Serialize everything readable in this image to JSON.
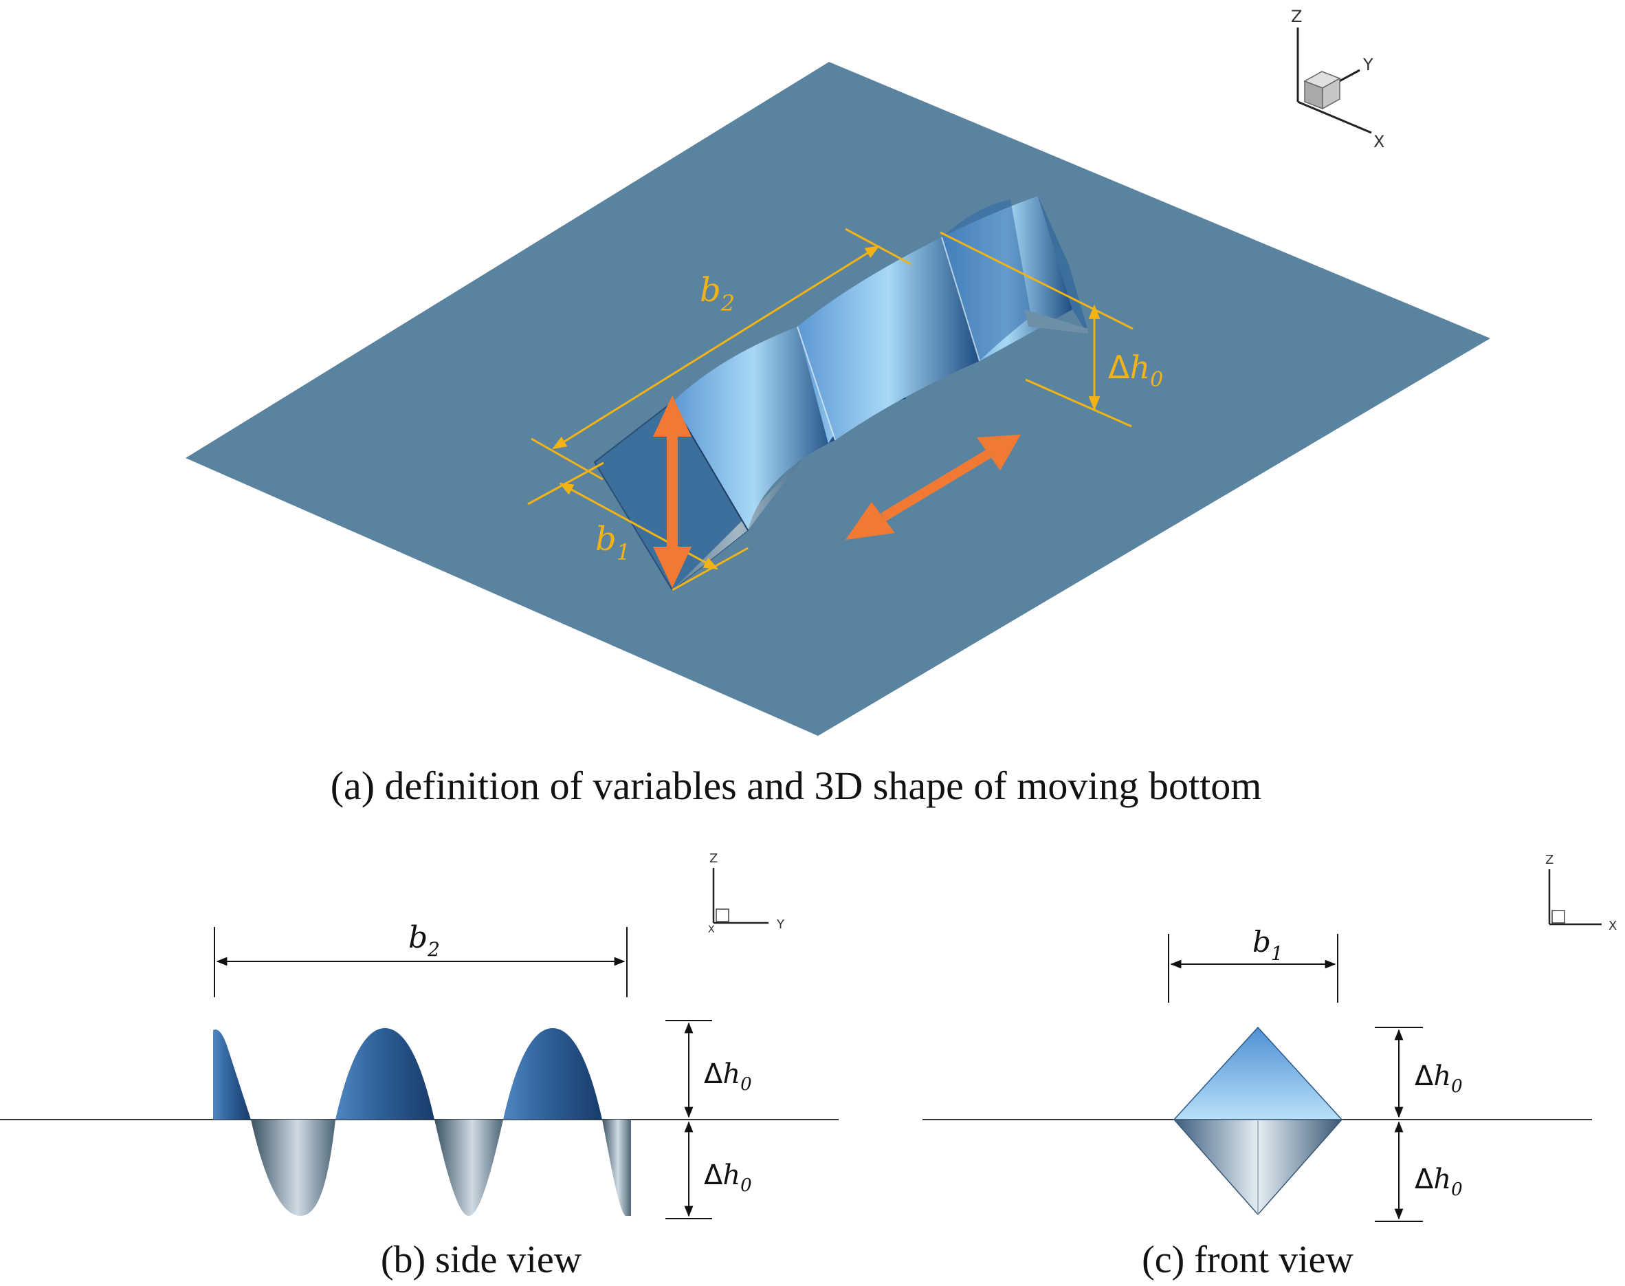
{
  "panel_a": {
    "caption": "(a) definition of variables and 3D shape of moving bottom",
    "label_b2": {
      "symbol": "b",
      "sub": "2"
    },
    "label_b1": {
      "symbol": "b",
      "sub": "1"
    },
    "label_dh0": {
      "delta": "Δ",
      "symbol": "h",
      "sub": "0"
    },
    "axes": {
      "z": "Z",
      "y": "Y",
      "x": "X"
    }
  },
  "panel_b": {
    "caption": "(b)  side view",
    "label_b2": {
      "symbol": "b",
      "sub": "2"
    },
    "label_dh0_upper": {
      "delta": "Δ",
      "symbol": "h",
      "sub": "0"
    },
    "label_dh0_lower": {
      "delta": "Δ",
      "symbol": "h",
      "sub": "0"
    },
    "axes": {
      "z": "Z",
      "y": "Y",
      "x": "X"
    }
  },
  "panel_c": {
    "caption": "(c) front view",
    "label_b1": {
      "symbol": "b",
      "sub": "1"
    },
    "label_dh0_upper": {
      "delta": "Δ",
      "symbol": "h",
      "sub": "0"
    },
    "label_dh0_lower": {
      "delta": "Δ",
      "symbol": "h",
      "sub": "0"
    },
    "axes": {
      "z": "Z",
      "x": "X"
    }
  },
  "colors": {
    "plate": "#5a83a0",
    "dimension_lines": "#f2b315",
    "motion_arrows": "#f07a33",
    "surface_light": "#a8d8f6",
    "surface_dark": "#1f4d82"
  }
}
